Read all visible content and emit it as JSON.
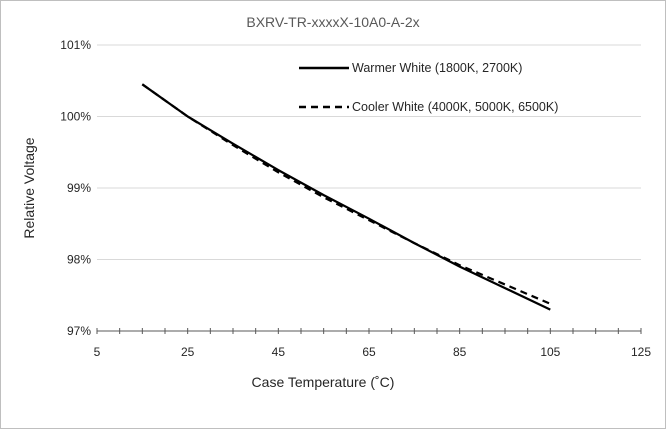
{
  "chart_data": {
    "type": "line",
    "title": "BXRV-TR-xxxxX-10A0-A-2x",
    "xlabel": "Case Temperature (˚C)",
    "ylabel": "Relative Voltage",
    "xlim": [
      5,
      125
    ],
    "ylim": [
      97,
      101
    ],
    "x_ticks": [
      "5",
      "25",
      "45",
      "65",
      "85",
      "105",
      "125"
    ],
    "y_ticks": [
      "97%",
      "98%",
      "99%",
      "100%",
      "101%"
    ],
    "grid": "horizontal",
    "legend_position": "top-right",
    "series": [
      {
        "name": "Warmer White (1800K, 2700K)",
        "style": "solid",
        "color": "#000000",
        "x": [
          15,
          25,
          35,
          45,
          55,
          65,
          75,
          85,
          95,
          105
        ],
        "y": [
          100.45,
          100.0,
          99.62,
          99.25,
          98.9,
          98.57,
          98.23,
          97.9,
          97.6,
          97.3
        ]
      },
      {
        "name": "Cooler White (4000K, 5000K, 6500K)",
        "style": "dashed",
        "color": "#000000",
        "x": [
          15,
          25,
          35,
          45,
          55,
          65,
          75,
          85,
          95,
          105
        ],
        "y": [
          100.45,
          100.0,
          99.6,
          99.22,
          98.87,
          98.55,
          98.23,
          97.92,
          97.65,
          97.38
        ]
      }
    ]
  }
}
